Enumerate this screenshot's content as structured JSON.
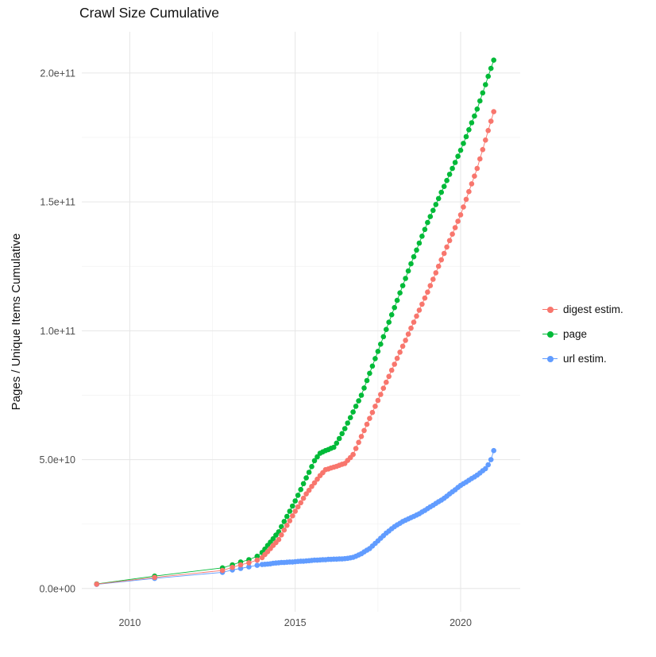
{
  "chart_data": {
    "type": "scatter",
    "title": "Crawl Size Cumulative",
    "xlabel": "",
    "ylabel": "Pages / Unique Items Cumulative",
    "y_unit": "billions (values are multiples of 1e9)",
    "grid": true,
    "legend_position": "right",
    "x_domain": [
      2008.55,
      2021.8
    ],
    "y_domain": [
      -9,
      216
    ],
    "x_ticks": [
      {
        "value": 2010,
        "label": "2010"
      },
      {
        "value": 2015,
        "label": "2015"
      },
      {
        "value": 2020,
        "label": "2020"
      }
    ],
    "x_minor_ticks": [
      2012.5,
      2017.5
    ],
    "y_ticks": [
      {
        "value": 0,
        "label": "0.0e+00"
      },
      {
        "value": 50,
        "label": "5.0e+10"
      },
      {
        "value": 100,
        "label": "1.0e+11"
      },
      {
        "value": 150,
        "label": "1.5e+11"
      },
      {
        "value": 200,
        "label": "2.0e+11"
      }
    ],
    "y_minor_ticks": [
      25,
      75,
      125,
      175
    ],
    "colors": {
      "grid_major": "#e6e6e6",
      "grid_minor": "#f2f2f2",
      "tick_text": "#4d4d4d",
      "title_text": "#111111"
    },
    "draw_order": [
      "page",
      "url estim.",
      "digest estim."
    ],
    "x": [
      2009.0,
      2010.75,
      2012.8,
      2013.1,
      2013.35,
      2013.6,
      2013.85,
      2014.0,
      2014.083,
      2014.167,
      2014.25,
      2014.333,
      2014.417,
      2014.5,
      2014.583,
      2014.667,
      2014.75,
      2014.833,
      2014.917,
      2015.0,
      2015.083,
      2015.167,
      2015.25,
      2015.333,
      2015.417,
      2015.5,
      2015.583,
      2015.667,
      2015.75,
      2015.833,
      2015.917,
      2016.0,
      2016.083,
      2016.167,
      2016.25,
      2016.333,
      2016.417,
      2016.5,
      2016.583,
      2016.667,
      2016.75,
      2016.833,
      2016.917,
      2017.0,
      2017.083,
      2017.167,
      2017.25,
      2017.333,
      2017.417,
      2017.5,
      2017.583,
      2017.667,
      2017.75,
      2017.833,
      2017.917,
      2018.0,
      2018.083,
      2018.167,
      2018.25,
      2018.333,
      2018.417,
      2018.5,
      2018.583,
      2018.667,
      2018.75,
      2018.833,
      2018.917,
      2019.0,
      2019.083,
      2019.167,
      2019.25,
      2019.333,
      2019.417,
      2019.5,
      2019.583,
      2019.667,
      2019.75,
      2019.833,
      2019.917,
      2020.0,
      2020.083,
      2020.167,
      2020.25,
      2020.333,
      2020.417,
      2020.5,
      2020.583,
      2020.667,
      2020.75,
      2020.833,
      2020.917,
      2021.0
    ],
    "series": [
      {
        "name": "digest estim.",
        "color": "#F8766D",
        "y": [
          1.7,
          4.3,
          7.0,
          8.2,
          9.2,
          10.0,
          11.0,
          12.0,
          13.2,
          14.3,
          15.5,
          16.7,
          17.8,
          19.0,
          20.8,
          22.7,
          24.5,
          26.3,
          28.2,
          30.0,
          31.7,
          33.3,
          35.0,
          36.7,
          38.1,
          39.6,
          41.0,
          42.4,
          43.8,
          44.9,
          46.1,
          46.4,
          46.8,
          47.1,
          47.4,
          47.8,
          48.2,
          48.5,
          49.7,
          50.8,
          52.0,
          54.3,
          56.7,
          59.0,
          61.3,
          63.7,
          66.0,
          68.3,
          70.7,
          73.0,
          75.3,
          77.7,
          80.0,
          82.3,
          84.7,
          87.0,
          89.3,
          91.7,
          94.0,
          96.3,
          98.7,
          101.0,
          103.3,
          105.7,
          108.0,
          110.3,
          112.7,
          115.0,
          117.5,
          120.0,
          122.5,
          125.0,
          127.5,
          130.0,
          132.5,
          135.0,
          137.5,
          140.0,
          142.5,
          145.0,
          148.0,
          151.0,
          154.0,
          157.0,
          160.0,
          163.0,
          166.7,
          170.3,
          174.0,
          177.7,
          181.3,
          185.0
        ]
      },
      {
        "name": "page",
        "color": "#00BA38",
        "y": [
          1.8,
          4.8,
          8.0,
          9.2,
          10.3,
          11.2,
          12.5,
          14.0,
          15.3,
          16.7,
          18.0,
          19.3,
          20.7,
          22.0,
          24.0,
          26.0,
          28.0,
          30.0,
          32.0,
          34.0,
          36.2,
          38.4,
          40.7,
          42.9,
          45.1,
          47.3,
          49.6,
          51.1,
          52.5,
          53.0,
          53.5,
          53.9,
          54.4,
          54.8,
          56.4,
          58.2,
          60.1,
          62.0,
          64.2,
          66.3,
          68.5,
          70.7,
          72.8,
          75.0,
          77.8,
          80.7,
          83.5,
          86.3,
          89.2,
          92.0,
          94.8,
          97.7,
          100.5,
          103.3,
          106.2,
          109.0,
          111.8,
          114.7,
          117.5,
          120.3,
          123.2,
          126.0,
          128.7,
          131.3,
          134.0,
          136.7,
          139.3,
          142.0,
          144.3,
          146.7,
          149.0,
          151.3,
          153.7,
          156.0,
          158.3,
          160.7,
          163.0,
          165.3,
          167.7,
          170.0,
          172.7,
          175.3,
          178.0,
          180.7,
          183.3,
          186.0,
          189.2,
          192.3,
          195.5,
          198.7,
          201.8,
          205.0
        ]
      },
      {
        "name": "url estim.",
        "color": "#619CFF",
        "y": [
          1.6,
          3.9,
          6.3,
          7.2,
          7.8,
          8.4,
          9.0,
          9.3,
          9.4,
          9.5,
          9.6,
          9.8,
          9.9,
          10.0,
          10.1,
          10.1,
          10.2,
          10.3,
          10.3,
          10.4,
          10.5,
          10.6,
          10.6,
          10.7,
          10.8,
          10.9,
          11.0,
          11.0,
          11.1,
          11.2,
          11.2,
          11.3,
          11.3,
          11.4,
          11.4,
          11.5,
          11.5,
          11.6,
          11.7,
          11.9,
          12.1,
          12.5,
          13.0,
          13.5,
          14.2,
          14.9,
          15.5,
          16.5,
          17.5,
          18.5,
          19.5,
          20.5,
          21.5,
          22.3,
          23.2,
          24.0,
          24.7,
          25.3,
          26.0,
          26.5,
          27.0,
          27.5,
          28.0,
          28.5,
          29.0,
          29.7,
          30.3,
          31.0,
          31.7,
          32.3,
          33.0,
          33.7,
          34.3,
          35.0,
          35.8,
          36.7,
          37.5,
          38.3,
          39.2,
          40.0,
          40.7,
          41.3,
          42.0,
          42.7,
          43.3,
          44.0,
          44.8,
          45.7,
          46.5,
          48.0,
          50.0,
          53.5
        ]
      }
    ]
  }
}
